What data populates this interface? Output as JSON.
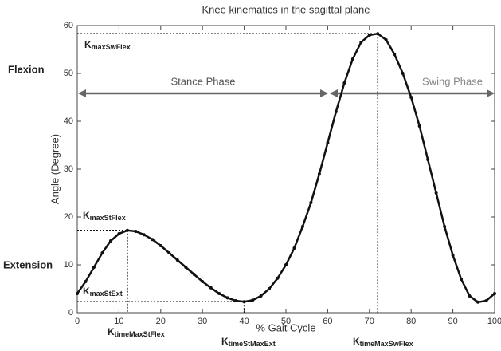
{
  "chart_data": {
    "type": "line",
    "title": "Knee kinematics in the sagittal plane",
    "xlabel": "% Gait Cycle",
    "ylabel": "Angle (Degree)",
    "x": [
      0,
      2,
      4,
      6,
      8,
      10,
      12,
      14,
      16,
      18,
      20,
      22,
      24,
      26,
      28,
      30,
      32,
      34,
      36,
      38,
      40,
      42,
      44,
      46,
      48,
      50,
      52,
      54,
      56,
      58,
      60,
      62,
      64,
      66,
      68,
      70,
      72,
      74,
      76,
      78,
      80,
      82,
      84,
      86,
      88,
      90,
      92,
      94,
      96,
      98,
      100
    ],
    "series": [
      {
        "color": "#111111",
        "values": [
          4,
          6.5,
          9.5,
          12.5,
          15,
          16.5,
          17.2,
          17,
          16.3,
          15.3,
          14,
          12.5,
          11,
          9.5,
          8,
          6.5,
          5.2,
          4,
          3.1,
          2.5,
          2.3,
          2.6,
          3.5,
          5,
          7.2,
          10,
          13.5,
          18,
          23,
          29,
          35.5,
          42,
          48,
          53,
          56.5,
          58,
          58.3,
          57,
          54,
          50,
          45,
          39,
          32,
          25,
          18,
          12,
          7,
          3.5,
          2.2,
          2.5,
          4
        ]
      }
    ],
    "xlim": [
      0,
      100
    ],
    "xticks": [
      0,
      10,
      20,
      30,
      40,
      50,
      60,
      70,
      80,
      90,
      100
    ],
    "ylim": [
      0,
      60
    ],
    "yticks": [
      0,
      10,
      20,
      30,
      40,
      50,
      60
    ],
    "side_labels": [
      "Flexion",
      "Extension"
    ],
    "phases": [
      "Stance Phase",
      "Swing Phase"
    ],
    "annotations": [
      {
        "base": "K",
        "sub": "maxSwFlex"
      },
      {
        "base": "K",
        "sub": "maxStFlex"
      },
      {
        "base": "K",
        "sub": "maxStExt"
      },
      {
        "base": "K",
        "sub": "timeMaxStFlex"
      },
      {
        "base": "K",
        "sub": "timeStMaxExt"
      },
      {
        "base": "K",
        "sub": "timeMaxSwFlex"
      }
    ]
  }
}
